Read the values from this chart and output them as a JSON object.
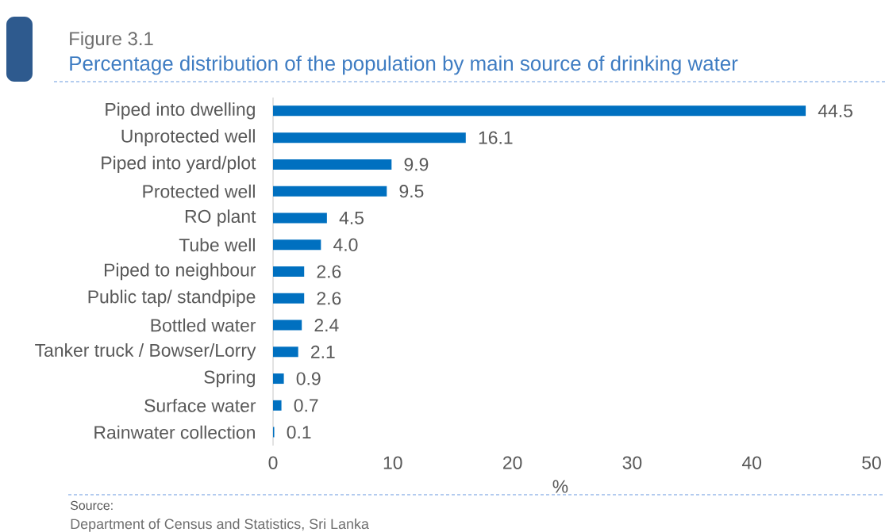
{
  "chart_data": {
    "type": "bar",
    "orientation": "horizontal",
    "title": "Percentage distribution of the population by main source of drinking water",
    "xlabel": "%",
    "categories": [
      "Piped into dwelling",
      "Unprotected well",
      "Piped into yard/plot",
      "Protected well",
      "RO plant",
      "Tube well",
      "Piped to neighbour",
      "Public tap/ standpipe",
      "Bottled water",
      "Tanker truck / Bowser/Lorry",
      "Spring",
      "Surface water",
      "Rainwater collection"
    ],
    "values": [
      44.5,
      16.1,
      9.9,
      9.5,
      4.5,
      4.0,
      2.6,
      2.6,
      2.4,
      2.1,
      0.9,
      0.7,
      0.1
    ],
    "value_labels": [
      "44.5",
      "16.1",
      "9.9",
      "9.5",
      "4.5",
      "4.0",
      "2.6",
      "2.6",
      "2.4",
      "2.1",
      "0.9",
      "0.7",
      "0.1"
    ],
    "color": "#0070c0",
    "xlim": [
      0,
      50
    ],
    "xticks": [
      0,
      10,
      20,
      30,
      40,
      50
    ],
    "annotations": [
      "Figure 3.1",
      "Source:",
      "Department of Census and Statistics, Sri Lanka"
    ]
  }
}
